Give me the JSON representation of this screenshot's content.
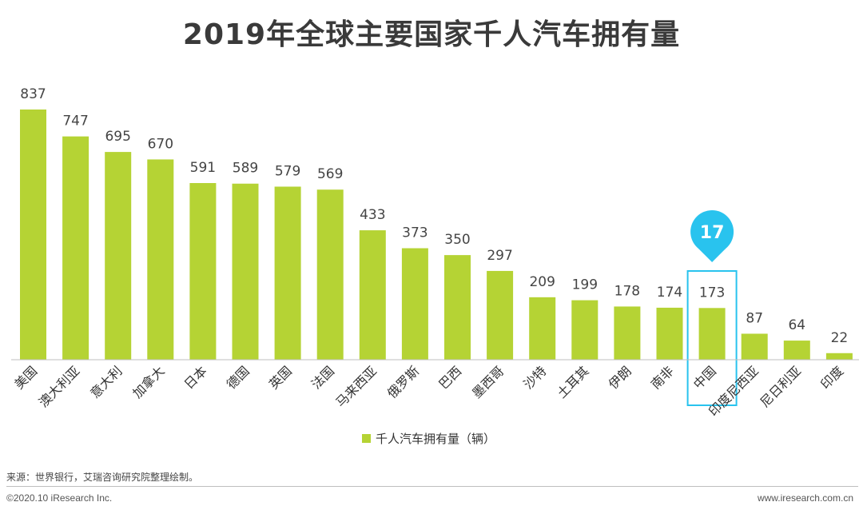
{
  "header": {
    "title": "2019年全球主要国家千人汽车拥有量"
  },
  "chart_data": {
    "type": "bar",
    "title": "2019年全球主要国家千人汽车拥有量",
    "categories": [
      "美国",
      "澳大利亚",
      "意大利",
      "加拿大",
      "日本",
      "德国",
      "英国",
      "法国",
      "马来西亚",
      "俄罗斯",
      "巴西",
      "墨西哥",
      "沙特",
      "土耳其",
      "伊朗",
      "南非",
      "中国",
      "印度尼西亚",
      "尼日利亚",
      "印度"
    ],
    "series": [
      {
        "name": "千人汽车拥有量（辆）",
        "values": [
          837,
          747,
          695,
          670,
          591,
          589,
          579,
          569,
          433,
          373,
          350,
          297,
          209,
          199,
          178,
          174,
          173,
          87,
          64,
          22
        ]
      }
    ],
    "ylim": [
      0,
      837
    ],
    "grid": false,
    "legend_position": "bottom",
    "highlight": {
      "category": "中国",
      "badge": "17"
    },
    "colors": {
      "bar": "#b5d334",
      "highlight": "#29c3ee",
      "axis": "#bfbfbf"
    }
  },
  "footer": {
    "source": "来源：世界银行，艾瑞咨询研究院整理绘制。",
    "copyright": "©2020.10 iResearch Inc.",
    "site": "www.iresearch.com.cn"
  }
}
